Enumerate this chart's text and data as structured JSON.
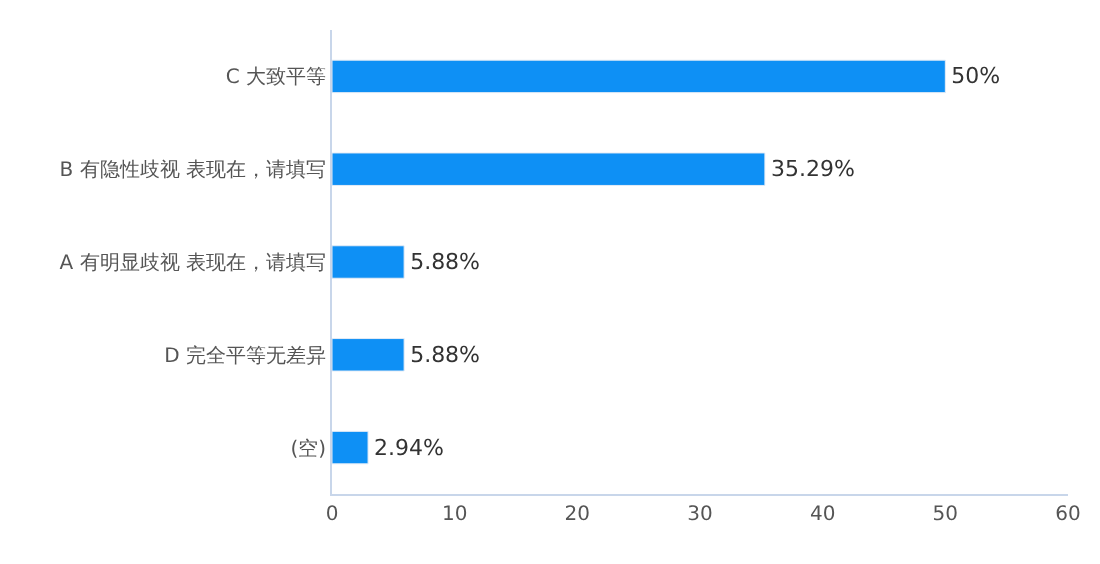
{
  "chart_data": {
    "type": "bar",
    "orientation": "horizontal",
    "categories": [
      "C 大致平等",
      "B 有隐性歧视 表现在，请填写",
      "A 有明显歧视 表现在，请填写",
      "D 完全平等无差异",
      "(空)"
    ],
    "values": [
      50,
      35.29,
      5.88,
      5.88,
      2.94
    ],
    "value_labels": [
      "50%",
      "35.29%",
      "5.88%",
      "5.88%",
      "2.94%"
    ],
    "color": "#0e90f5",
    "xlim": [
      0,
      60
    ],
    "xticks": [
      0,
      10,
      20,
      30,
      40,
      50,
      60
    ]
  }
}
